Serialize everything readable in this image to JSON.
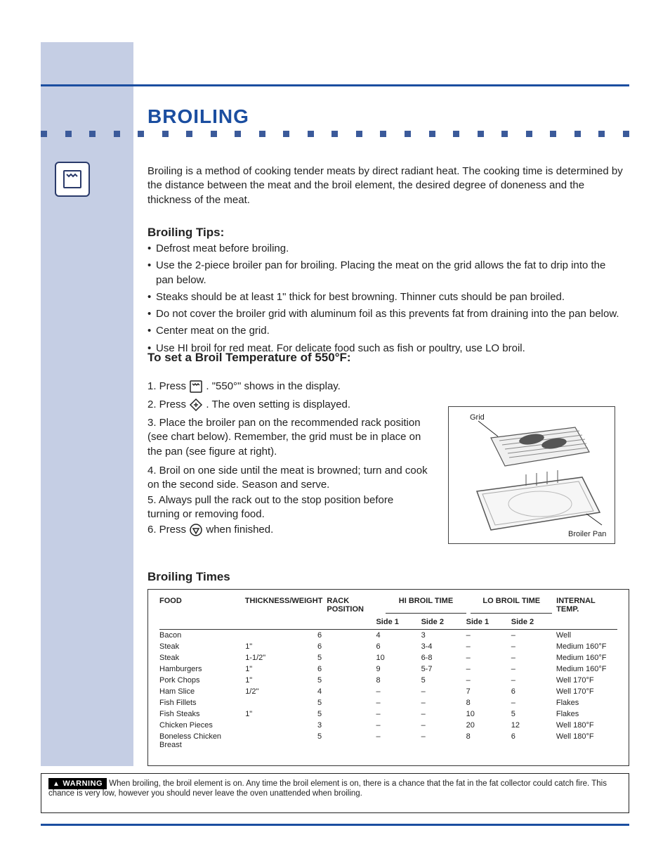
{
  "colors": {
    "accent": "#1b4ea0",
    "sidebar": "#c5cee4",
    "dot": "#3b5a9a",
    "text": "#222222",
    "border": "#333333",
    "warning_bg": "#000000",
    "warning_fg": "#ffffff",
    "page_bg": "#ffffff"
  },
  "title": "BROILING",
  "intro": "Broiling is a method of cooking tender meats by direct radiant heat. The cooking time is determined by the distance between the meat and the broil element, the desired degree of doneness and the thickness of the meat.",
  "tips_heading": "Broiling Tips:",
  "tips": [
    "Defrost meat before broiling.",
    "Use the 2-piece broiler pan for broiling. Placing the meat on the grid allows the fat to drip into the pan below.",
    "Steaks should be at least 1\" thick for best browning. Thinner cuts should be pan broiled.",
    "Do not cover the broiler grid with aluminum foil as this prevents fat from draining into the pan below.",
    "Center meat on the grid.",
    "Use HI broil for red meat. For delicate food such as fish or poultry, use LO broil."
  ],
  "set_temp_heading": "To set a Broil Temperature of 550°F:",
  "steps": {
    "s1a": "1. Press",
    "s1b": ". \"550°\" shows in the display.",
    "s2a": "2. Press",
    "s2b": ". The oven setting is displayed.",
    "s3": "3. Place the broiler pan on the recommended rack position (see chart below). Remember, the grid must be in place on the pan (see figure at right).",
    "s4": "4. Broil on one side until the meat is browned; turn and cook on the second side. Season and serve.",
    "s5": "5. Always pull the rack out to the stop position before turning or removing food.",
    "s6a": "6. Press",
    "s6b": " when finished."
  },
  "figure": {
    "grid_label": "Grid",
    "pan_label": "Broiler Pan"
  },
  "times_heading": "Broiling Times",
  "table": {
    "head": {
      "food": "FOOD",
      "thickness": "THICKNESS/WEIGHT",
      "rack": "RACK POSITION",
      "hi_first_group": "HI BROIL TIME",
      "lo_first_group": "LO BROIL TIME",
      "temp": "INTERNAL TEMP."
    },
    "subhead": {
      "side1": "Side 1",
      "side2": "Side 2"
    },
    "rows": [
      {
        "food": "Bacon",
        "thick": "",
        "rack": "6",
        "hi1": "4",
        "hi2": "3",
        "lo1": "–",
        "lo2": "–",
        "temp": "Well"
      },
      {
        "food": "Steak",
        "thick": "1\"",
        "rack": "6",
        "hi1": "6",
        "hi2": "3-4",
        "lo1": "–",
        "lo2": "–",
        "temp": "Medium 160°F"
      },
      {
        "food": "Steak",
        "thick": "1-1/2\"",
        "rack": "5",
        "hi1": "10",
        "hi2": "6-8",
        "lo1": "–",
        "lo2": "–",
        "temp": "Medium 160°F"
      },
      {
        "food": "Hamburgers",
        "thick": "1\"",
        "rack": "6",
        "hi1": "9",
        "hi2": "5-7",
        "lo1": "–",
        "lo2": "–",
        "temp": "Medium 160°F"
      },
      {
        "food": "Pork Chops",
        "thick": "1\"",
        "rack": "5",
        "hi1": "8",
        "hi2": "5",
        "lo1": "–",
        "lo2": "–",
        "temp": "Well 170°F"
      },
      {
        "food": "Ham Slice",
        "thick": "1/2\"",
        "rack": "4",
        "hi1": "–",
        "hi2": "–",
        "lo1": "7",
        "lo2": "6",
        "temp": "Well 170°F"
      },
      {
        "food": "Fish Fillets",
        "thick": "",
        "rack": "5",
        "hi1": "–",
        "hi2": "–",
        "lo1": "8",
        "lo2": "–",
        "temp": "Flakes"
      },
      {
        "food": "Fish Steaks",
        "thick": "1\"",
        "rack": "5",
        "hi1": "–",
        "hi2": "–",
        "lo1": "10",
        "lo2": "5",
        "temp": "Flakes"
      },
      {
        "food": "Chicken Pieces",
        "thick": "",
        "rack": "3",
        "hi1": "–",
        "hi2": "–",
        "lo1": "20",
        "lo2": "12",
        "temp": "Well 180°F"
      },
      {
        "food": "Boneless Chicken Breast",
        "thick": "",
        "rack": "5",
        "hi1": "–",
        "hi2": "–",
        "lo1": "8",
        "lo2": "6",
        "temp": "Well 180°F"
      }
    ]
  },
  "warning": {
    "label": "WARNING",
    "text": "When broiling, the broil element is on. Any time the broil element is on, there is a chance that the fat in the fat collector could catch fire. This chance is very low, however you should never leave the oven unattended when broiling."
  }
}
